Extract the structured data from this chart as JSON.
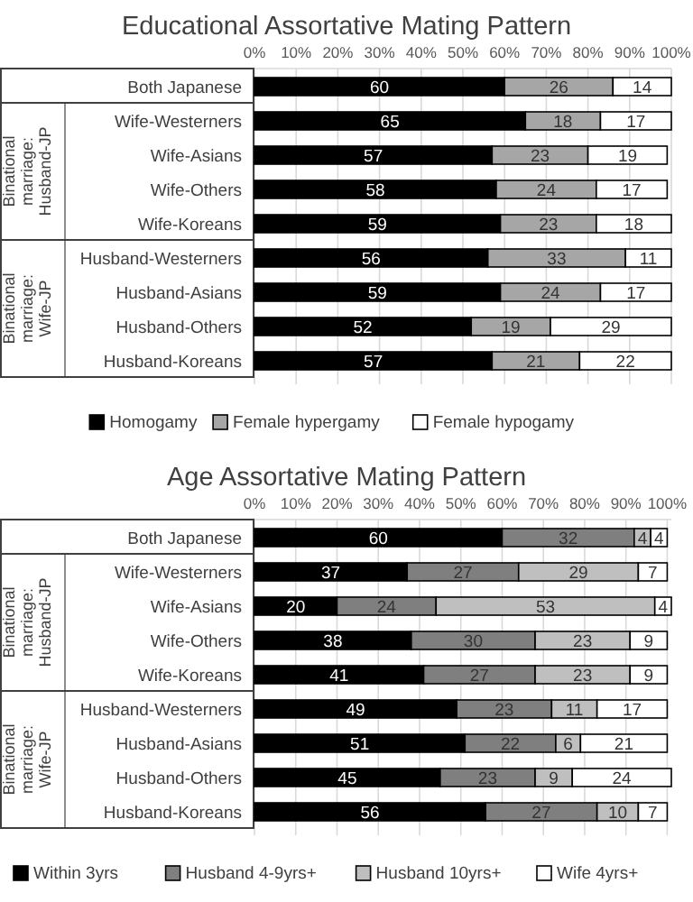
{
  "chart_data": [
    {
      "type": "bar",
      "orientation": "horizontal",
      "stacked": true,
      "title": "Educational Assortative Mating Pattern",
      "categories": [
        "Both Japanese",
        "Wife-Westerners",
        "Wife-Asians",
        "Wife-Others",
        "Wife-Koreans",
        "Husband-Westerners",
        "Husband-Asians",
        "Husband-Others",
        "Husband-Koreans"
      ],
      "series": [
        {
          "name": "Homogamy",
          "color": "#000000",
          "values": [
            60,
            65,
            57,
            58,
            59,
            56,
            59,
            52,
            57
          ]
        },
        {
          "name": "Female hypergamy",
          "color": "#a6a6a6",
          "values": [
            26,
            18,
            23,
            24,
            23,
            33,
            24,
            19,
            21
          ]
        },
        {
          "name": "Female hypogamy",
          "color": "#ffffff",
          "values": [
            14,
            17,
            19,
            17,
            18,
            11,
            17,
            29,
            22
          ]
        }
      ],
      "xlim": [
        0,
        100
      ],
      "xticks": [
        {
          "value": 0,
          "label": "0%"
        },
        {
          "value": 10,
          "label": "10%"
        },
        {
          "value": 20,
          "label": "20%"
        },
        {
          "value": 30,
          "label": "30%"
        },
        {
          "value": 40,
          "label": "40%"
        },
        {
          "value": 50,
          "label": "50%"
        },
        {
          "value": 60,
          "label": "60%"
        },
        {
          "value": 70,
          "label": "70%"
        },
        {
          "value": 80,
          "label": "80%"
        },
        {
          "value": 90,
          "label": "90%"
        },
        {
          "value": 100,
          "label": "100%"
        }
      ],
      "annotations": [
        "Binational marriage: Husband-JP",
        "Binational marriage: Wife-JP"
      ],
      "data_labels": true,
      "grid": "x",
      "legend": "bottom"
    },
    {
      "type": "bar",
      "orientation": "horizontal",
      "stacked": true,
      "title": "Age Assortative Mating Pattern",
      "categories": [
        "Both Japanese",
        "Wife-Westerners",
        "Wife-Asians",
        "Wife-Others",
        "Wife-Koreans",
        "Husband-Westerners",
        "Husband-Asians",
        "Husband-Others",
        "Husband-Koreans"
      ],
      "series": [
        {
          "name": "Within 3yrs",
          "color": "#000000",
          "values": [
            60,
            37,
            20,
            38,
            41,
            49,
            51,
            45,
            56
          ]
        },
        {
          "name": "Husband 4-9yrs+",
          "color": "#7f7f7f",
          "values": [
            32,
            27,
            24,
            30,
            27,
            23,
            22,
            23,
            27
          ]
        },
        {
          "name": "Husband 10yrs+",
          "color": "#bfbfbf",
          "values": [
            4,
            29,
            53,
            23,
            23,
            11,
            6,
            9,
            10
          ]
        },
        {
          "name": "Wife 4yrs+",
          "color": "#ffffff",
          "values": [
            4,
            7,
            4,
            9,
            9,
            17,
            21,
            24,
            7
          ]
        }
      ],
      "xlim": [
        0,
        101
      ],
      "xticks": [
        {
          "value": 0,
          "label": "0%"
        },
        {
          "value": 10,
          "label": "10%"
        },
        {
          "value": 20,
          "label": "20%"
        },
        {
          "value": 30,
          "label": "30%"
        },
        {
          "value": 40,
          "label": "40%"
        },
        {
          "value": 50,
          "label": "50%"
        },
        {
          "value": 60,
          "label": "60%"
        },
        {
          "value": 70,
          "label": "70%"
        },
        {
          "value": 80,
          "label": "80%"
        },
        {
          "value": 90,
          "label": "90%"
        },
        {
          "value": 100,
          "label": "100%"
        }
      ],
      "annotations": [
        "Binational marriage: Husband-JP",
        "Binational marriage: Wife-JP"
      ],
      "data_labels": true,
      "grid": "x",
      "legend": "bottom"
    }
  ]
}
